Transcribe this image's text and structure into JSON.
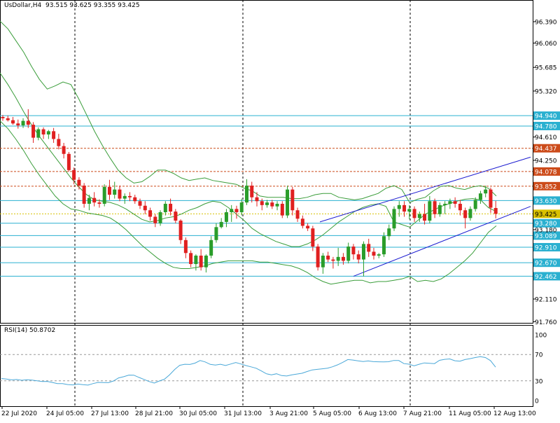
{
  "header": {
    "symbol": "UsDollar,H4",
    "ohlc": "93.515 93.625 93.355 93.425"
  },
  "rsi_header": {
    "label": "RSI(14)",
    "value": "50.8702"
  },
  "colors": {
    "bull": "#2a9d2a",
    "bear": "#e02020",
    "band": "#3a9d3a",
    "cyan_level": "#2ab0d0",
    "red_level": "#cc4b1a",
    "yellow_level": "#d8c000",
    "channel": "#1a1ad0",
    "rsi_line": "#4aa8d8",
    "current_price": "#d8c000"
  },
  "chart_data": [
    {
      "type": "candlestick",
      "title": "UsDollar,H4",
      "ylim": [
        91.76,
        96.62
      ],
      "x_tick_labels": [
        "22 Jul 2020",
        "24 Jul 05:00",
        "27 Jul 13:00",
        "28 Jul 21:00",
        "30 Jul 05:00",
        "31 Jul 13:00",
        "3 Aug 21:00",
        "5 Aug 05:00",
        "6 Aug 13:00",
        "7 Aug 21:00",
        "11 Aug 05:00",
        "12 Aug 13:00"
      ],
      "y_ticks": [
        "96.390",
        "96.060",
        "95.685",
        "95.320",
        "94.610",
        "94.250",
        "93.180",
        "92.110",
        "91.760"
      ],
      "price_levels": [
        {
          "label": "94.940",
          "value": 94.94,
          "kind": "cyan"
        },
        {
          "label": "94.780",
          "value": 94.78,
          "kind": "cyan"
        },
        {
          "label": "94.437",
          "value": 94.437,
          "kind": "red"
        },
        {
          "label": "94.078",
          "value": 94.078,
          "kind": "red"
        },
        {
          "label": "93.852",
          "value": 93.852,
          "kind": "red"
        },
        {
          "label": "93.630",
          "value": 93.63,
          "kind": "cyan"
        },
        {
          "label": "93.280",
          "value": 93.28,
          "kind": "cyan"
        },
        {
          "label": "93.089",
          "value": 93.089,
          "kind": "cyan"
        },
        {
          "label": "92.910",
          "value": 92.91,
          "kind": "cyan"
        },
        {
          "label": "92.670",
          "value": 92.67,
          "kind": "cyan"
        },
        {
          "label": "92.462",
          "value": 92.462,
          "kind": "cyan"
        }
      ],
      "current_price": {
        "label": "93.425",
        "value": 93.425
      },
      "candles": [
        [
          94.92,
          94.95,
          94.86,
          94.9
        ],
        [
          94.9,
          94.94,
          94.85,
          94.87
        ],
        [
          94.87,
          94.92,
          94.8,
          94.82
        ],
        [
          94.82,
          94.88,
          94.74,
          94.79
        ],
        [
          94.79,
          94.9,
          94.75,
          94.86
        ],
        [
          94.86,
          95.04,
          94.75,
          94.8
        ],
        [
          94.8,
          94.84,
          94.52,
          94.6
        ],
        [
          94.6,
          94.76,
          94.56,
          94.73
        ],
        [
          94.73,
          94.76,
          94.58,
          94.65
        ],
        [
          94.65,
          94.72,
          94.58,
          94.7
        ],
        [
          94.7,
          94.75,
          94.52,
          94.58
        ],
        [
          94.58,
          94.66,
          94.42,
          94.47
        ],
        [
          94.47,
          94.52,
          94.28,
          94.35
        ],
        [
          94.35,
          94.38,
          94.08,
          94.1
        ],
        [
          94.1,
          94.14,
          93.88,
          93.95
        ],
        [
          93.95,
          93.99,
          93.8,
          93.86
        ],
        [
          93.86,
          93.9,
          93.52,
          93.58
        ],
        [
          93.58,
          93.72,
          93.48,
          93.67
        ],
        [
          93.67,
          93.76,
          93.54,
          93.6
        ],
        [
          93.6,
          93.65,
          93.52,
          93.58
        ],
        [
          93.58,
          93.88,
          93.54,
          93.84
        ],
        [
          93.84,
          93.95,
          93.64,
          93.72
        ],
        [
          93.72,
          93.92,
          93.66,
          93.8
        ],
        [
          93.8,
          93.86,
          93.62,
          93.66
        ],
        [
          93.66,
          93.74,
          93.58,
          93.7
        ],
        [
          93.7,
          93.76,
          93.62,
          93.68
        ],
        [
          93.68,
          93.72,
          93.58,
          93.62
        ],
        [
          93.62,
          93.66,
          93.5,
          93.55
        ],
        [
          93.55,
          93.62,
          93.42,
          93.48
        ],
        [
          93.48,
          93.52,
          93.32,
          93.38
        ],
        [
          93.38,
          93.42,
          93.22,
          93.28
        ],
        [
          93.28,
          93.48,
          93.24,
          93.45
        ],
        [
          93.45,
          93.62,
          93.4,
          93.58
        ],
        [
          93.58,
          93.66,
          93.4,
          93.46
        ],
        [
          93.46,
          93.5,
          93.28,
          93.32
        ],
        [
          93.32,
          93.34,
          92.96,
          93.02
        ],
        [
          93.02,
          93.06,
          92.74,
          92.82
        ],
        [
          92.82,
          92.86,
          92.6,
          92.65
        ],
        [
          92.65,
          92.8,
          92.55,
          92.78
        ],
        [
          92.78,
          92.88,
          92.55,
          92.6
        ],
        [
          92.6,
          92.8,
          92.52,
          92.78
        ],
        [
          92.78,
          93.08,
          92.74,
          93.02
        ],
        [
          93.02,
          93.28,
          92.98,
          93.22
        ],
        [
          93.22,
          93.36,
          93.2,
          93.3
        ],
        [
          93.3,
          93.5,
          93.22,
          93.45
        ],
        [
          93.45,
          93.56,
          93.3,
          93.5
        ],
        [
          93.5,
          93.55,
          93.35,
          93.45
        ],
        [
          93.45,
          93.66,
          93.4,
          93.6
        ],
        [
          93.6,
          93.96,
          93.56,
          93.86
        ],
        [
          93.86,
          93.92,
          93.6,
          93.68
        ],
        [
          93.68,
          93.76,
          93.54,
          93.62
        ],
        [
          93.62,
          93.66,
          93.48,
          93.56
        ],
        [
          93.56,
          93.64,
          93.52,
          93.6
        ],
        [
          93.6,
          93.64,
          93.5,
          93.54
        ],
        [
          93.54,
          93.62,
          93.48,
          93.58
        ],
        [
          93.58,
          93.62,
          93.36,
          93.4
        ],
        [
          93.4,
          93.86,
          93.36,
          93.8
        ],
        [
          93.8,
          93.84,
          93.4,
          93.48
        ],
        [
          93.48,
          93.52,
          93.3,
          93.35
        ],
        [
          93.35,
          93.4,
          93.2,
          93.24
        ],
        [
          93.24,
          93.28,
          93.16,
          93.2
        ],
        [
          93.2,
          93.24,
          92.85,
          92.92
        ],
        [
          92.92,
          92.96,
          92.55,
          92.6
        ],
        [
          92.6,
          92.82,
          92.5,
          92.78
        ],
        [
          92.78,
          92.84,
          92.68,
          92.72
        ],
        [
          92.72,
          92.76,
          92.58,
          92.7
        ],
        [
          92.7,
          92.9,
          92.62,
          92.76
        ],
        [
          92.76,
          92.82,
          92.64,
          92.7
        ],
        [
          92.7,
          92.98,
          92.66,
          92.92
        ],
        [
          92.92,
          92.96,
          92.72,
          92.8
        ],
        [
          92.8,
          92.86,
          92.66,
          92.72
        ],
        [
          92.72,
          93.0,
          92.46,
          92.96
        ],
        [
          92.96,
          93.04,
          92.76,
          92.84
        ],
        [
          92.84,
          92.9,
          92.72,
          92.78
        ],
        [
          92.78,
          92.82,
          92.74,
          92.8
        ],
        [
          92.8,
          93.14,
          92.76,
          93.08
        ],
        [
          93.08,
          93.26,
          93.02,
          93.2
        ],
        [
          93.2,
          93.54,
          93.16,
          93.5
        ],
        [
          93.5,
          93.62,
          93.38,
          93.56
        ],
        [
          93.56,
          93.62,
          93.38,
          93.46
        ],
        [
          93.46,
          93.56,
          93.34,
          93.5
        ],
        [
          93.5,
          93.54,
          93.3,
          93.36
        ],
        [
          93.36,
          93.46,
          93.3,
          93.42
        ],
        [
          93.42,
          93.58,
          93.26,
          93.32
        ],
        [
          93.32,
          93.7,
          93.28,
          93.62
        ],
        [
          93.62,
          93.66,
          93.36,
          93.42
        ],
        [
          93.42,
          93.6,
          93.38,
          93.56
        ],
        [
          93.56,
          93.62,
          93.42,
          93.58
        ],
        [
          93.58,
          93.66,
          93.5,
          93.62
        ],
        [
          93.62,
          93.68,
          93.52,
          93.58
        ],
        [
          93.58,
          93.64,
          93.4,
          93.48
        ],
        [
          93.48,
          93.52,
          93.2,
          93.36
        ],
        [
          93.36,
          93.54,
          93.32,
          93.5
        ],
        [
          93.5,
          93.68,
          93.46,
          93.64
        ],
        [
          93.64,
          93.78,
          93.58,
          93.74
        ],
        [
          93.74,
          93.86,
          93.68,
          93.8
        ],
        [
          93.8,
          93.83,
          93.44,
          93.52
        ],
        [
          93.515,
          93.625,
          93.355,
          93.425
        ]
      ],
      "bollinger": {
        "upper": [
          96.4,
          96.28,
          96.1,
          95.92,
          95.7,
          95.5,
          95.35,
          95.4,
          95.46,
          95.42,
          95.2,
          94.95,
          94.7,
          94.48,
          94.28,
          94.1,
          93.98,
          93.9,
          93.92,
          94.0,
          94.1,
          94.1,
          94.05,
          93.98,
          93.94,
          93.96,
          93.98,
          93.94,
          93.92,
          93.9,
          93.88,
          93.82,
          93.78,
          93.7,
          93.68,
          93.68,
          93.68,
          93.66,
          93.66,
          93.68,
          93.72,
          93.74,
          93.74,
          93.68,
          93.66,
          93.64,
          93.66,
          93.7,
          93.74,
          93.82,
          93.86,
          93.8,
          93.6,
          93.65,
          93.68,
          93.78,
          93.85,
          93.86,
          93.82,
          93.8,
          93.84,
          93.86,
          93.82,
          93.7
        ],
        "middle": [
          95.6,
          95.42,
          95.22,
          95.0,
          94.8,
          94.62,
          94.46,
          94.3,
          94.14,
          93.98,
          93.84,
          93.72,
          93.64,
          93.62,
          93.6,
          93.56,
          93.5,
          93.42,
          93.34,
          93.3,
          93.32,
          93.36,
          93.38,
          93.42,
          93.48,
          93.52,
          93.58,
          93.62,
          93.6,
          93.52,
          93.42,
          93.32,
          93.2,
          93.12,
          93.06,
          93.0,
          92.96,
          92.92,
          92.92,
          92.96,
          93.02,
          93.1,
          93.2,
          93.3,
          93.38,
          93.46,
          93.52,
          93.56,
          93.58,
          93.54,
          93.3,
          93.26,
          93.22,
          93.32,
          93.42,
          93.48,
          93.54,
          93.58,
          93.62,
          93.65,
          93.66,
          93.64,
          93.52,
          93.46
        ],
        "lower": [
          94.86,
          94.74,
          94.58,
          94.4,
          94.2,
          94.02,
          93.86,
          93.7,
          93.58,
          93.5,
          93.48,
          93.44,
          93.42,
          93.4,
          93.36,
          93.28,
          93.18,
          93.06,
          92.94,
          92.84,
          92.74,
          92.66,
          92.6,
          92.58,
          92.58,
          92.6,
          92.62,
          92.66,
          92.68,
          92.7,
          92.7,
          92.7,
          92.7,
          92.68,
          92.68,
          92.66,
          92.64,
          92.62,
          92.58,
          92.52,
          92.44,
          92.38,
          92.34,
          92.36,
          92.38,
          92.4,
          92.4,
          92.36,
          92.38,
          92.38,
          92.4,
          92.42,
          92.46,
          92.38,
          92.4,
          92.38,
          92.42,
          92.5,
          92.6,
          92.7,
          92.82,
          92.98,
          93.14,
          93.24
        ]
      },
      "channel": {
        "lower_start": [
          "5 Aug 05:00",
          92.462
        ],
        "lower_end": [
          "12 Aug 13:00",
          93.54
        ],
        "upper_start": [
          "5 Aug 05:00",
          93.3
        ],
        "upper_end": [
          "12 Aug 13:00",
          94.3
        ]
      }
    },
    {
      "type": "line",
      "title": "RSI(14) 50.8702",
      "ylim": [
        0,
        100
      ],
      "y_ticks": [
        "100",
        "70",
        "30",
        "0"
      ],
      "levels": [
        70,
        30
      ],
      "series": [
        {
          "values": [
            33.5,
            32.7,
            31.5,
            32.0,
            30.9,
            31.7,
            31.2,
            30.1,
            28.9,
            29.2,
            27.5,
            25.9,
            25.8,
            24.4,
            23.8,
            25.1,
            24.2,
            23.5,
            25.8,
            27.7,
            27.4,
            27.2,
            29.8,
            34.5,
            36.3,
            38.7,
            38.6,
            35.2,
            32.1,
            28.9,
            26.6,
            29.8,
            32.4,
            39.2,
            47.2,
            53.6,
            55.2,
            54.9,
            56.9,
            60.9,
            58.7,
            55.0,
            53.9,
            55.2,
            53.3,
            55.5,
            57.9,
            55.6,
            53.2,
            51.3,
            49.2,
            45.1,
            40.7,
            39.1,
            40.7,
            38.0,
            37.3,
            39.0,
            40.3,
            41.5,
            44.2,
            46.6,
            47.4,
            48.3,
            49.3,
            51.4,
            54.4,
            58.1,
            62.3,
            61.6,
            60.3,
            59.3,
            60.2,
            59.2,
            58.9,
            58.7,
            59.0,
            61.0,
            60.9,
            56.2,
            55.3,
            52.9,
            55.2,
            57.2,
            56.7,
            56.2,
            61.2,
            62.7,
            63.3,
            60.5,
            59.9,
            62.3,
            63.7,
            65.4,
            66.8,
            65.4,
            60.7,
            50.9
          ]
        }
      ]
    }
  ]
}
